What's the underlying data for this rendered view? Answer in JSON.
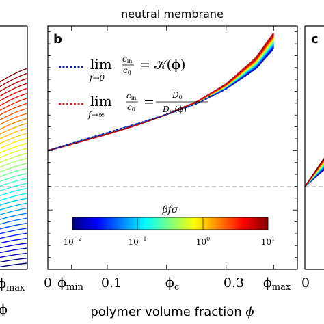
{
  "chart_data": [
    {
      "panel": "a",
      "type": "line",
      "partial": true,
      "visible_x_ticks": [
        "ϕmax"
      ],
      "xlabel": "ϕ",
      "colormap": "jet"
    },
    {
      "panel": "b",
      "type": "line",
      "title": "neutral membrane",
      "xlabel": "polymer volume fraction ϕ",
      "x_ticks": [
        "0",
        "ϕmin",
        "0.1",
        "ϕc",
        "0.3",
        "ϕmax"
      ],
      "x_tick_values": [
        0,
        0.04,
        0.1,
        0.2,
        0.3,
        0.38
      ],
      "xlim": [
        0,
        0.42
      ],
      "ylim": [
        -1.0,
        1.05
      ],
      "reference_line_y": 0,
      "reference_line_style": "dashed gray",
      "legend": [
        {
          "lim_sub": "f→0",
          "equation_rhs": "= 𝒦(ϕ)",
          "line_style": "dotted",
          "color": "#0b22b5"
        },
        {
          "lim_sub": "f→∞",
          "equation_rhs": "=",
          "rhs_num": "D0",
          "rhs_den": "Din(ϕ)",
          "line_style": "dotted",
          "color": "#e41f26"
        }
      ],
      "legend_fraction": {
        "num": "cin",
        "den": "c0"
      },
      "colorbar": {
        "label": "βfσ",
        "ticks": [
          "10−2",
          "10−1",
          "100",
          "101"
        ],
        "scale": "log",
        "range": [
          0.01,
          10
        ],
        "colormap": "jet"
      },
      "limit_curves": {
        "f_to_0": {
          "x": [
            0,
            0.05,
            0.1,
            0.15,
            0.2,
            0.25,
            0.3,
            0.35,
            0.38
          ],
          "y": [
            0,
            0.075,
            0.15,
            0.225,
            0.305,
            0.395,
            0.52,
            0.69,
            0.86
          ]
        },
        "f_to_inf": {
          "x": [
            0,
            0.05,
            0.1,
            0.15,
            0.2,
            0.25,
            0.3,
            0.35,
            0.38
          ],
          "y": [
            0,
            0.068,
            0.138,
            0.215,
            0.305,
            0.41,
            0.56,
            0.78,
            0.99
          ]
        }
      },
      "series_count_in_family": 31
    },
    {
      "panel": "c",
      "type": "line",
      "partial": true,
      "visible_x_ticks": [
        "0"
      ],
      "colormap": "jet"
    }
  ],
  "labels": {
    "title": "neutral membrane",
    "panel_b": "b",
    "panel_c": "c",
    "xlabel_text": "polymer volume fraction ",
    "xlabel_symbol": "ϕ",
    "left_xlabel": "ϕ",
    "left_tick": "ϕmax",
    "right_tick": "0",
    "lim": "lim",
    "f0": "f→0",
    "finf": "f→∞",
    "cin": "c",
    "cin_sub": "in",
    "c0": "c",
    "c0_sub": "0",
    "rhs1": "= 𝒦(ϕ)",
    "rhs2_eq": "=",
    "D0": "D",
    "D0_sub": "0",
    "Din": "D",
    "Din_sub": "in",
    "Din_arg": "(ϕ)",
    "cbar_label": "βfσ",
    "tick_0": "0",
    "tick_phimin": "ϕ",
    "tick_phimin_sub": "min",
    "tick_01": "0.1",
    "tick_phic": "ϕ",
    "tick_phic_sub": "c",
    "tick_03": "0.3",
    "tick_phimax": "ϕ",
    "tick_phimax_sub": "max",
    "cb_m2": "10",
    "cb_m2_exp": "−2",
    "cb_m1": "10",
    "cb_m1_exp": "−1",
    "cb_0": "10",
    "cb_0_exp": "0",
    "cb_1": "10",
    "cb_1_exp": "1"
  },
  "colors": {
    "f0_line": "#0b22b5",
    "finf_line": "#e41f26",
    "reference_line": "#9a9a9a",
    "axes": "#000000"
  }
}
